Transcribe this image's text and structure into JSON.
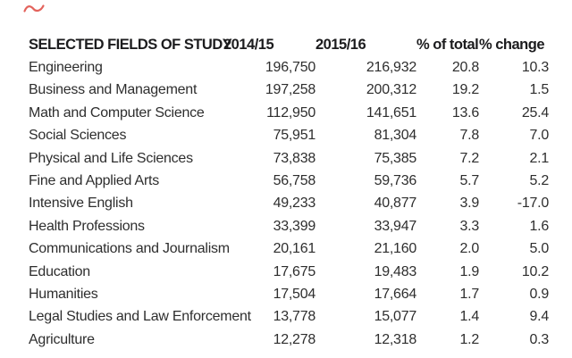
{
  "annotation": {
    "red_mark_color": "#e0524a"
  },
  "colors": {
    "background": "#ffffff",
    "header_text": "#1c1c1e",
    "body_text": "#2e2e2e"
  },
  "table": {
    "columns": [
      "SELECTED FIELDS OF STUDY",
      "2014/15",
      "2015/16",
      "% of total",
      "% change"
    ],
    "rows": [
      [
        "Engineering",
        "196,750",
        "216,932",
        "20.8",
        "10.3"
      ],
      [
        "Business and Management",
        "197,258",
        "200,312",
        "19.2",
        "1.5"
      ],
      [
        "Math and Computer Science",
        "112,950",
        "141,651",
        "13.6",
        "25.4"
      ],
      [
        "Social Sciences",
        "75,951",
        "81,304",
        "7.8",
        "7.0"
      ],
      [
        "Physical and Life Sciences",
        "73,838",
        "75,385",
        "7.2",
        "2.1"
      ],
      [
        "Fine and Applied Arts",
        "56,758",
        "59,736",
        "5.7",
        "5.2"
      ],
      [
        "Intensive English",
        "49,233",
        "40,877",
        "3.9",
        "-17.0"
      ],
      [
        "Health Professions",
        "33,399",
        "33,947",
        "3.3",
        "1.6"
      ],
      [
        "Communications and Journalism",
        "20,161",
        "21,160",
        "2.0",
        "5.0"
      ],
      [
        "Education",
        "17,675",
        "19,483",
        "1.9",
        "10.2"
      ],
      [
        "Humanities",
        "17,504",
        "17,664",
        "1.7",
        "0.9"
      ],
      [
        "Legal Studies and Law Enforcement",
        "13,778",
        "15,077",
        "1.4",
        "9.4"
      ],
      [
        "Agriculture",
        "12,278",
        "12,318",
        "1.2",
        "0.3"
      ]
    ]
  },
  "chart_data": {
    "type": "table",
    "title": "SELECTED FIELDS OF STUDY",
    "columns": [
      "SELECTED FIELDS OF STUDY",
      "2014/15",
      "2015/16",
      "% of total",
      "% change"
    ],
    "categories": [
      "Engineering",
      "Business and Management",
      "Math and Computer Science",
      "Social Sciences",
      "Physical and Life Sciences",
      "Fine and Applied Arts",
      "Intensive English",
      "Health Professions",
      "Communications and Journalism",
      "Education",
      "Humanities",
      "Legal Studies and Law Enforcement",
      "Agriculture"
    ],
    "series": [
      {
        "name": "2014/15",
        "values": [
          196750,
          197258,
          112950,
          75951,
          73838,
          56758,
          49233,
          33399,
          20161,
          17675,
          17504,
          13778,
          12278
        ]
      },
      {
        "name": "2015/16",
        "values": [
          216932,
          200312,
          141651,
          81304,
          75385,
          59736,
          40877,
          33947,
          21160,
          19483,
          17664,
          15077,
          12318
        ]
      },
      {
        "name": "% of total",
        "values": [
          20.8,
          19.2,
          13.6,
          7.8,
          7.2,
          5.7,
          3.9,
          3.3,
          2.0,
          1.9,
          1.7,
          1.4,
          1.2
        ]
      },
      {
        "name": "% change",
        "values": [
          10.3,
          1.5,
          25.4,
          7.0,
          2.1,
          5.2,
          -17.0,
          1.6,
          5.0,
          10.2,
          0.9,
          9.4,
          0.3
        ]
      }
    ],
    "layout": {
      "grid": false,
      "legend": "none",
      "header_style": "bold",
      "numeric_alignment": "right"
    }
  }
}
